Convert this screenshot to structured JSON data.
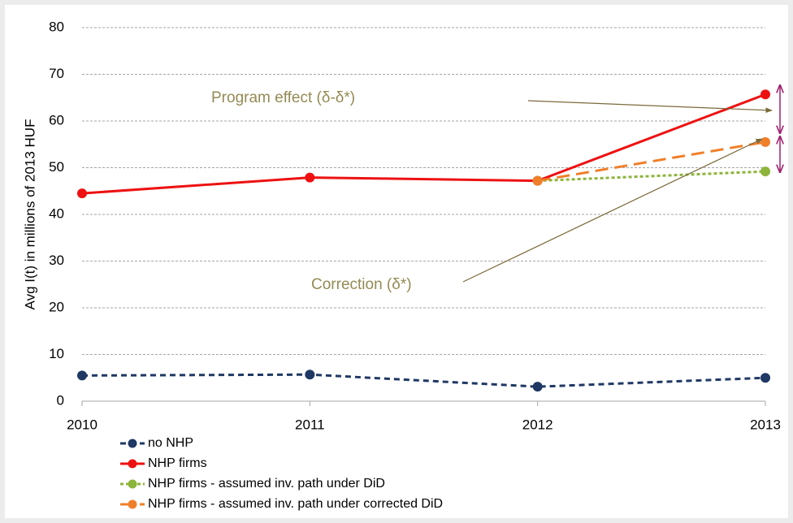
{
  "chart_data": {
    "type": "line",
    "y_label": "Avg I(t) in millions of 2013 HUF",
    "categories": [
      "2010",
      "2011",
      "2012",
      "2013"
    ],
    "ylim": [
      0,
      80
    ],
    "yticks": [
      0,
      10,
      20,
      30,
      40,
      50,
      60,
      70,
      80
    ],
    "grid": true,
    "legend": "bottom-left",
    "series": [
      {
        "name": "no NHP",
        "color": "#1f3864",
        "dash": "dashed",
        "values": [
          5.5,
          5.7,
          3.1,
          5.0
        ]
      },
      {
        "name": "NHP firms",
        "color": "#ee1111",
        "dash": "solid",
        "values": [
          44.5,
          47.9,
          47.2,
          65.7
        ]
      },
      {
        "name": "NHP firms - assumed inv. path under DiD",
        "color": "#8db43b",
        "dash": "dotted",
        "values": [
          null,
          null,
          47.2,
          49.2
        ]
      },
      {
        "name": "NHP firms - assumed inv. path under corrected DiD",
        "color": "#f07f2a",
        "dash": "long-dashed",
        "values": [
          null,
          null,
          47.2,
          55.5
        ]
      }
    ],
    "annotations": [
      {
        "text": "Program effect (δ-δ*)",
        "color": "#948a54"
      },
      {
        "text": "Correction (δ*)",
        "color": "#948a54"
      }
    ]
  }
}
